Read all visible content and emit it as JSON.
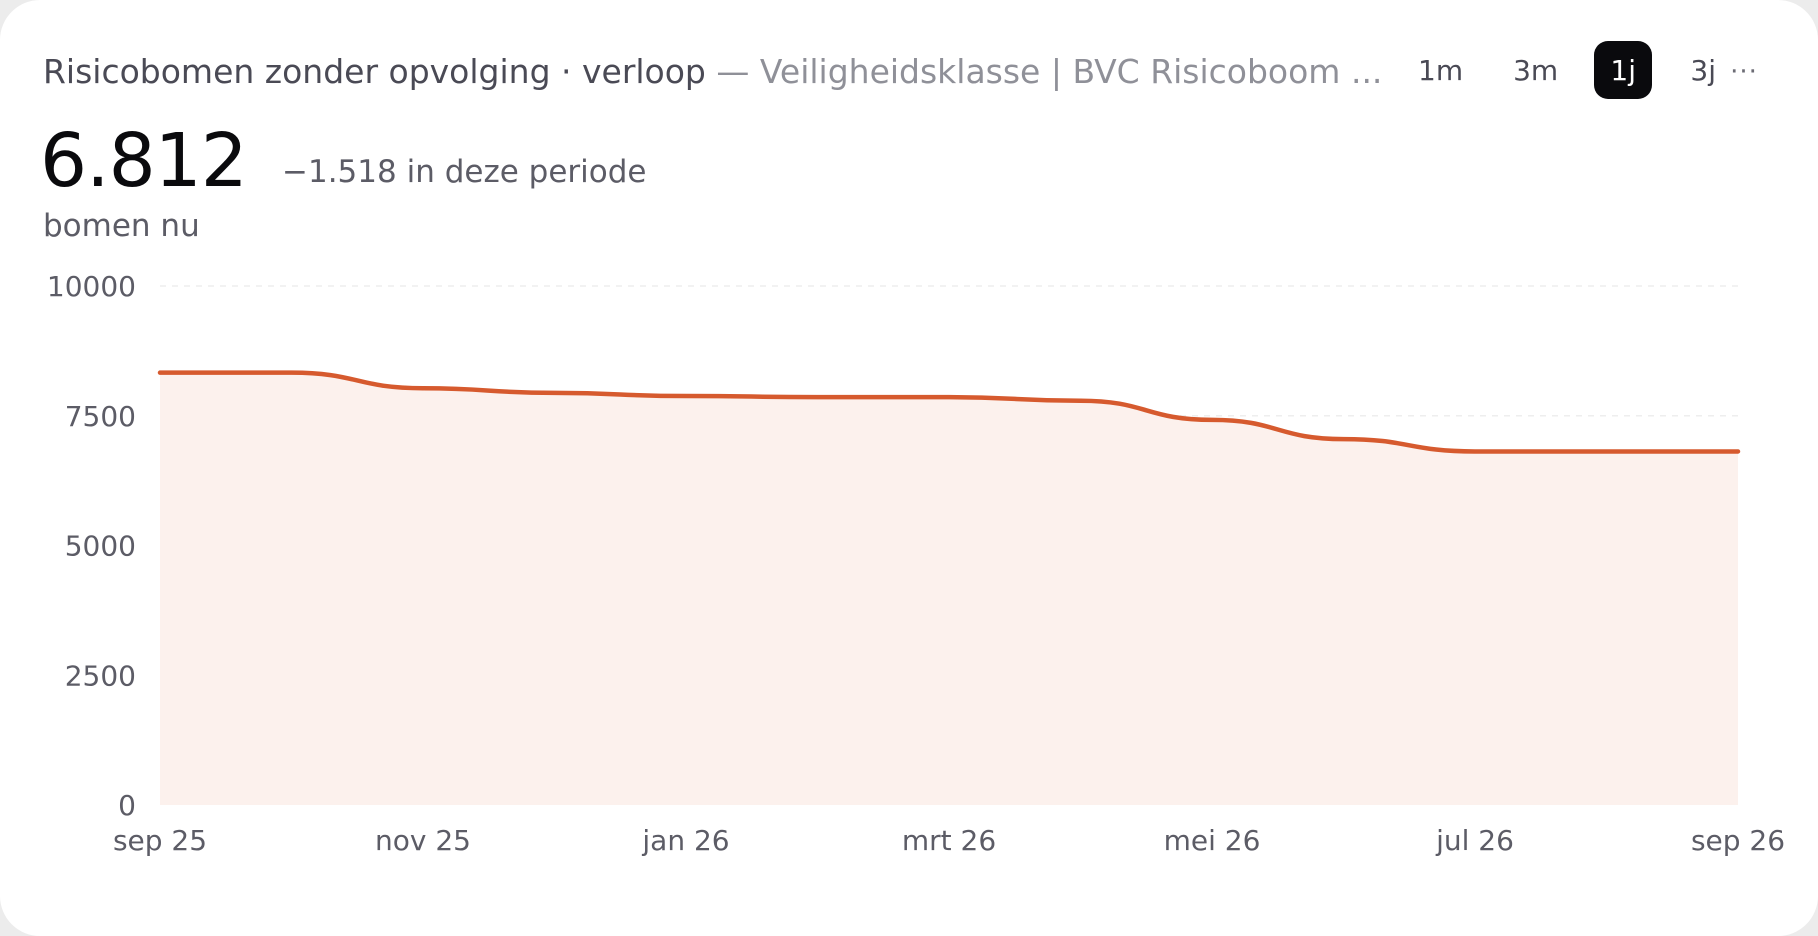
{
  "header": {
    "title": "Risicobomen zonder opvolging · verloop",
    "subtitle": "— Veiligheidsklasse | BVC Risicoboom ..."
  },
  "ranges": [
    {
      "label": "1m",
      "active": false
    },
    {
      "label": "3m",
      "active": false
    },
    {
      "label": "1j",
      "active": true
    },
    {
      "label": "3j",
      "active": false
    }
  ],
  "more_label": "···",
  "summary": {
    "value": "6.812",
    "delta": "−1.518 in deze periode",
    "value_label": "bomen nu"
  },
  "colors": {
    "line": "#d65a2e",
    "fill": "#fcf1ed",
    "grid": "#eeeeee"
  },
  "chart_data": {
    "type": "area",
    "x": [
      "2025-09",
      "2025-10",
      "2025-11",
      "2025-12",
      "2026-01",
      "2026-02",
      "2026-03",
      "2026-04",
      "2026-05",
      "2026-06",
      "2026-07",
      "2026-08",
      "2026-09"
    ],
    "values": [
      8330,
      8330,
      8030,
      7940,
      7880,
      7860,
      7860,
      7790,
      7420,
      7050,
      6812,
      6812,
      6812
    ],
    "x_tick_labels": [
      "sep 25",
      "nov 25",
      "jan 26",
      "mrt 26",
      "mei 26",
      "jul 26",
      "sep 26"
    ],
    "y_ticks": [
      0,
      2500,
      5000,
      7500,
      10000
    ],
    "y_tick_labels": [
      "0",
      "2500",
      "5000",
      "7500",
      "10000"
    ],
    "ylim": [
      0,
      10000
    ],
    "grid": true,
    "legend": "none"
  }
}
